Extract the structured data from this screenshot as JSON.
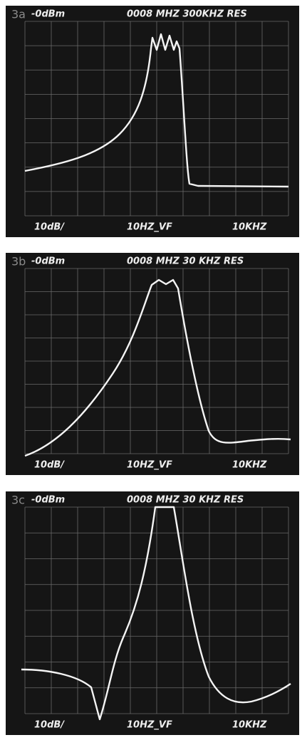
{
  "panels": [
    {
      "label": "3a",
      "ref": "-0dBm",
      "header": "0008 MHZ 300KHZ RES",
      "scale": "10dB/",
      "vf": "10HZ_VF",
      "span": "10KHZ"
    },
    {
      "label": "3b",
      "ref": "-0dBm",
      "header": "0008 MHZ 30 KHZ RES",
      "scale": "10dB/",
      "vf": "10HZ_VF",
      "span": "10KHZ"
    },
    {
      "label": "3c",
      "ref": "-0dBm",
      "header": "0008 MHZ 30 KHZ RES",
      "scale": "10dB/",
      "vf": "10HZ_VF",
      "span": "10KHZ"
    }
  ]
}
